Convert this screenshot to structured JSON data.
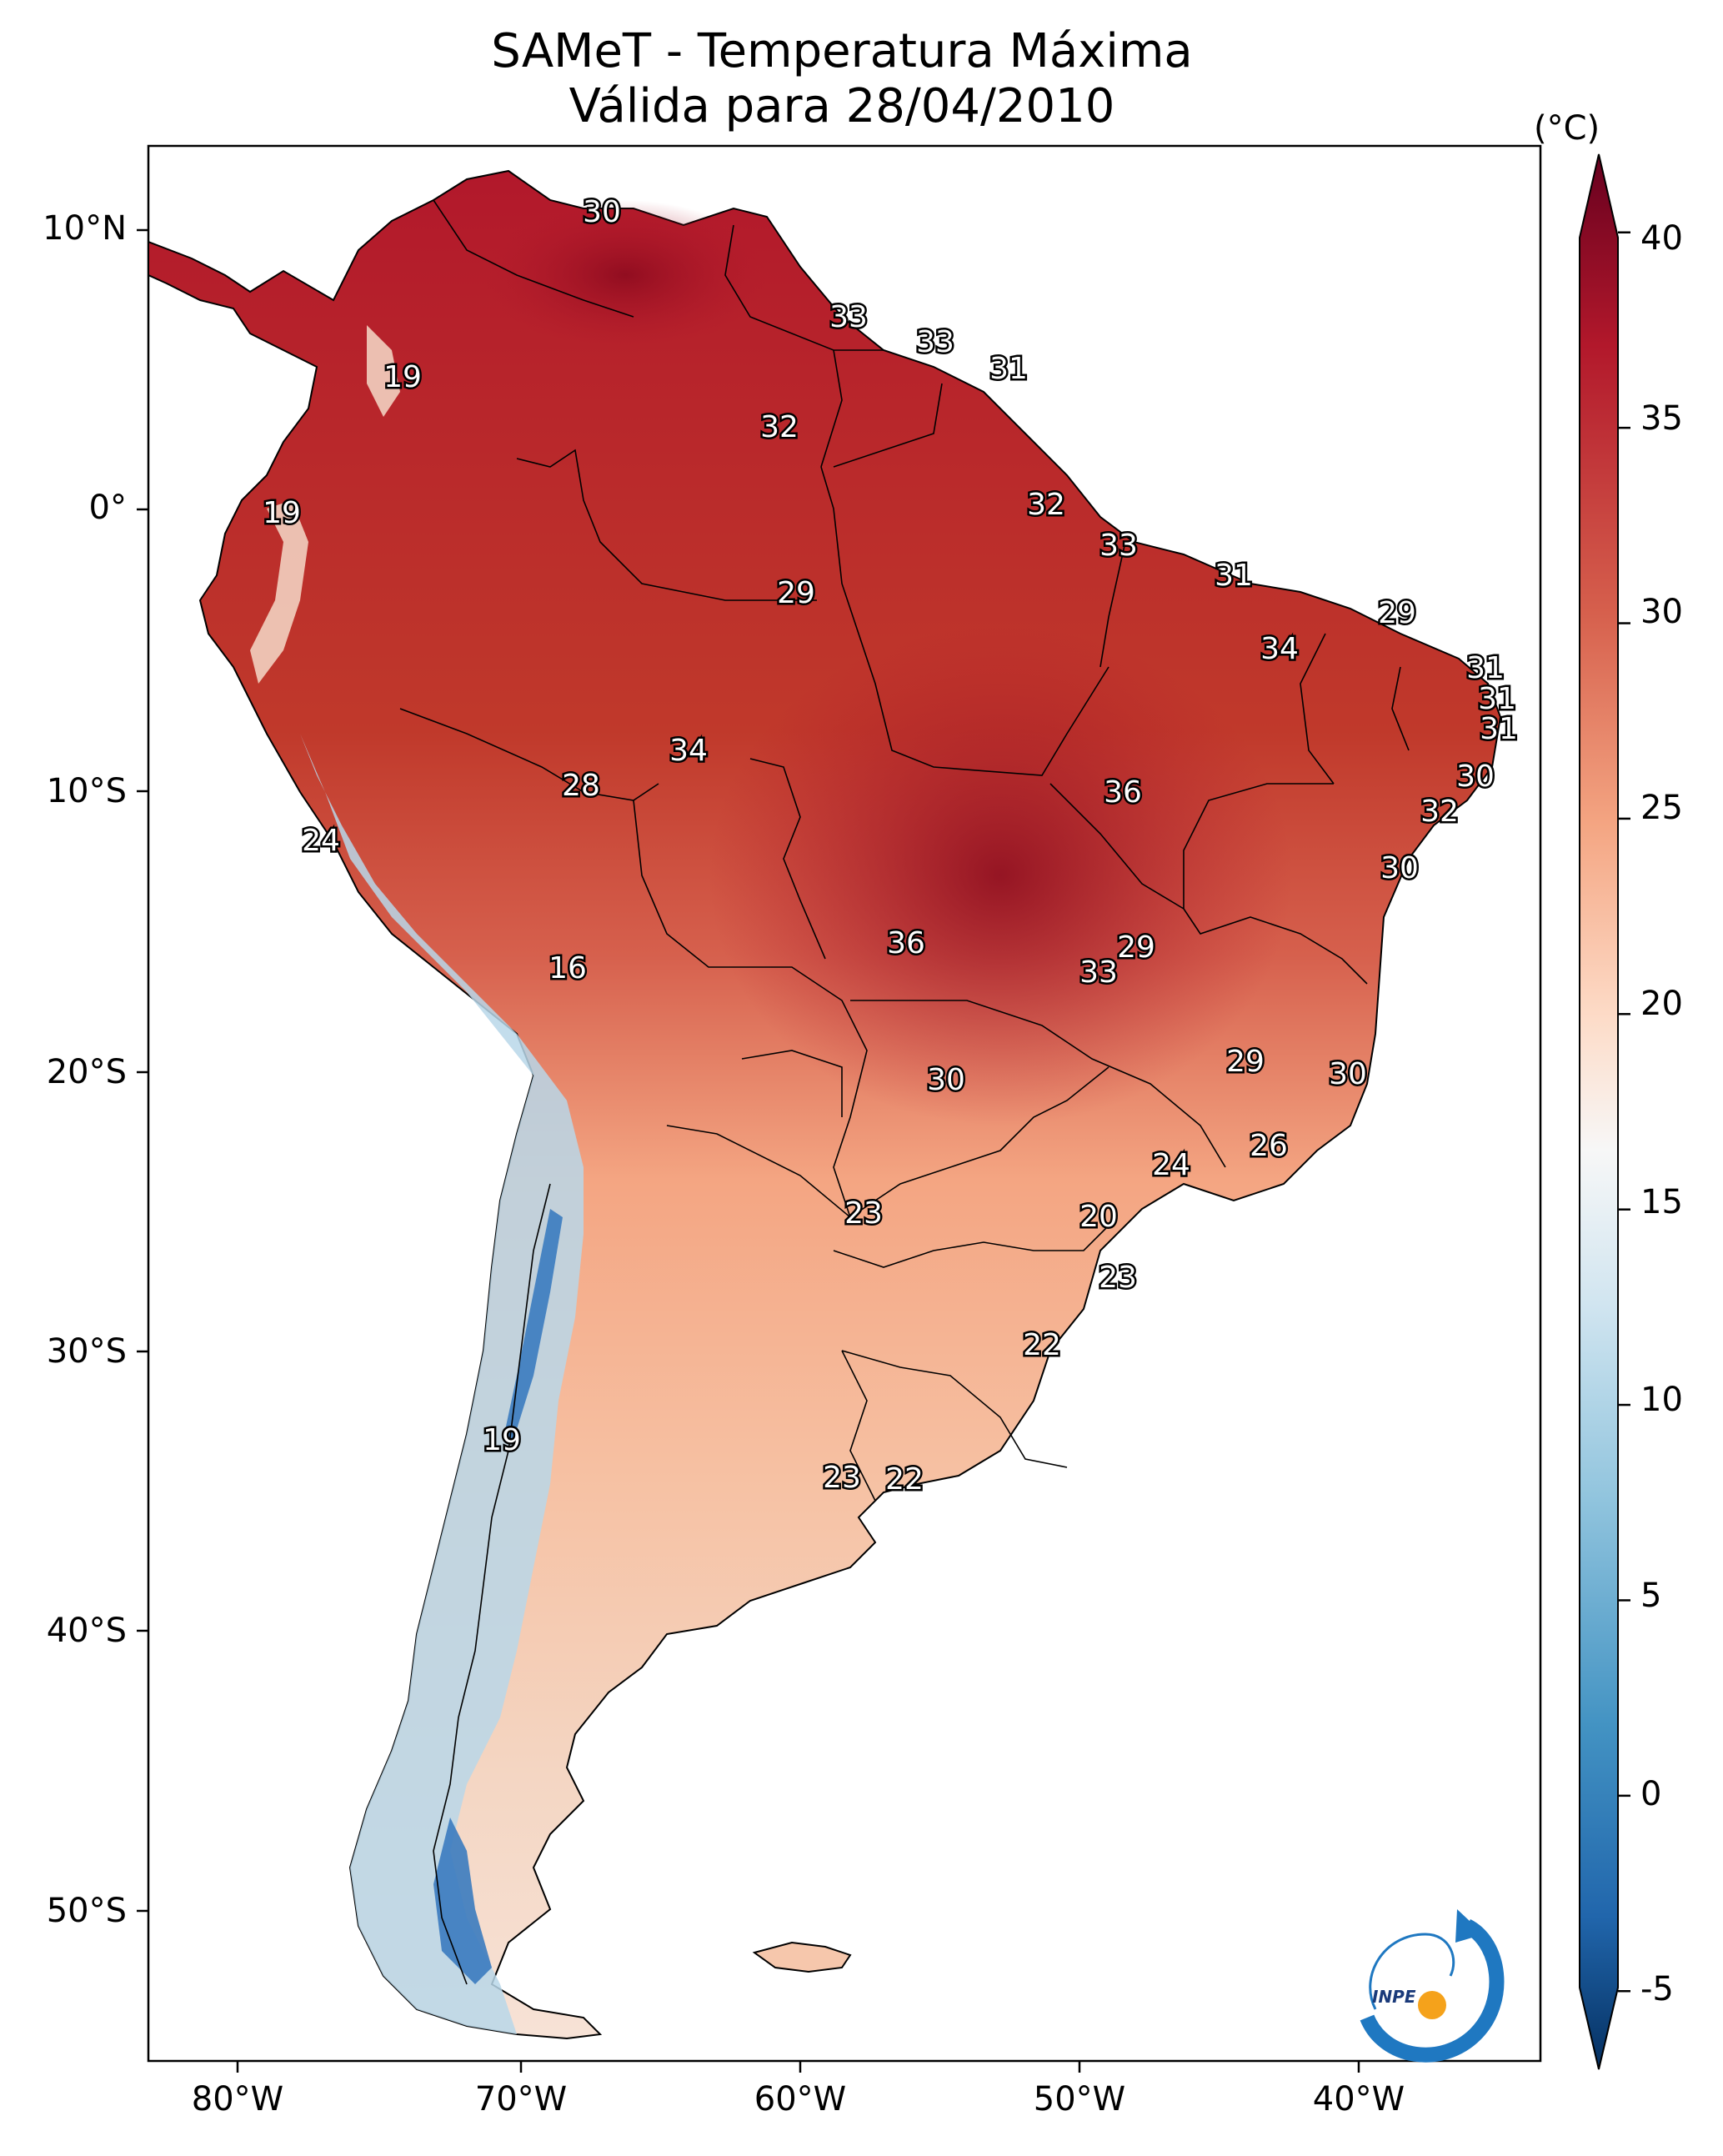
{
  "title": {
    "line1": "SAMeT - Temperatura Máxima",
    "line2": "Válida para 28/04/2010"
  },
  "axes": {
    "lat_labels": [
      "10°N",
      "0°",
      "10°S",
      "20°S",
      "30°S",
      "40°S",
      "50°S"
    ],
    "lon_labels": [
      "80°W",
      "70°W",
      "60°W",
      "50°W",
      "40°W"
    ]
  },
  "colorbar": {
    "unit": "(°C)",
    "ticks": [
      "40",
      "35",
      "30",
      "25",
      "20",
      "15",
      "10",
      "5",
      "0",
      "-5"
    ],
    "range": [
      -7,
      42
    ],
    "colors": {
      "hot": "#67001f",
      "warm": "#d6604d",
      "mild": "#f4a582",
      "neutral": "#f7f7f7",
      "cool": "#92c5de",
      "cold": "#2166ac",
      "coldest": "#053061"
    }
  },
  "contour_labels": [
    {
      "text": "30"
    },
    {
      "text": "33"
    },
    {
      "text": "33"
    },
    {
      "text": "31"
    },
    {
      "text": "19"
    },
    {
      "text": "32"
    },
    {
      "text": "19"
    },
    {
      "text": "32"
    },
    {
      "text": "33"
    },
    {
      "text": "31"
    },
    {
      "text": "29"
    },
    {
      "text": "29"
    },
    {
      "text": "34"
    },
    {
      "text": "31"
    },
    {
      "text": "31"
    },
    {
      "text": "31"
    },
    {
      "text": "34"
    },
    {
      "text": "28"
    },
    {
      "text": "36"
    },
    {
      "text": "30"
    },
    {
      "text": "32"
    },
    {
      "text": "24"
    },
    {
      "text": "30"
    },
    {
      "text": "16"
    },
    {
      "text": "36"
    },
    {
      "text": "29"
    },
    {
      "text": "33"
    },
    {
      "text": "29"
    },
    {
      "text": "30"
    },
    {
      "text": "30"
    },
    {
      "text": "26"
    },
    {
      "text": "24"
    },
    {
      "text": "23"
    },
    {
      "text": "20"
    },
    {
      "text": "23"
    },
    {
      "text": "22"
    },
    {
      "text": "19"
    },
    {
      "text": "23"
    },
    {
      "text": "22"
    }
  ],
  "logo": {
    "text": "INPE",
    "icon": "inpe-logo-icon"
  }
}
